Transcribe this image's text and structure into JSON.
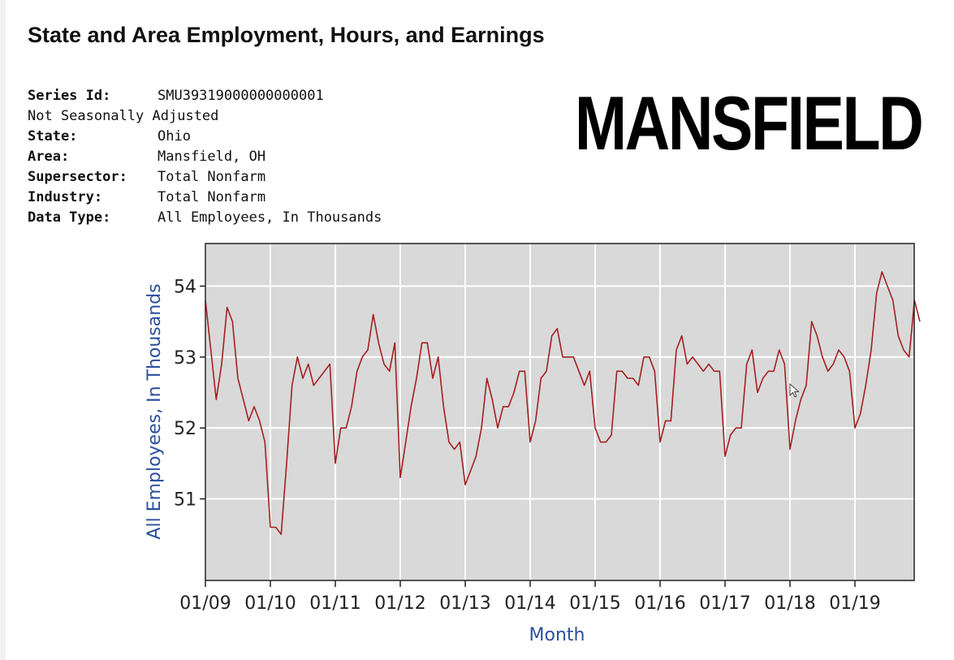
{
  "page": {
    "title": "State and Area Employment, Hours, and Earnings",
    "overlay_label": "MANSFIELD"
  },
  "series_info": [
    {
      "label": "Series Id:",
      "value": "SMU39319000000000001"
    },
    {
      "label": "Not Seasonally Adjusted",
      "value": ""
    },
    {
      "label": "State:",
      "value": "Ohio"
    },
    {
      "label": "Area:",
      "value": "Mansfield, OH"
    },
    {
      "label": "Supersector:",
      "value": "Total Nonfarm"
    },
    {
      "label": "Industry:",
      "value": "Total Nonfarm"
    },
    {
      "label": "Data Type:",
      "value": "All Employees, In Thousands"
    }
  ],
  "colors": {
    "plot_background": "#d9d9d9",
    "grid": "#ffffff",
    "line": "#a52020",
    "axis_label": "#2b4f9e",
    "tick_text": "#222222"
  },
  "chart_data": {
    "type": "line",
    "title": "",
    "xlabel": "Month",
    "ylabel": "All Employees, In Thousands",
    "x_ticks": [
      "01/09",
      "01/10",
      "01/11",
      "01/12",
      "01/13",
      "01/14",
      "01/15",
      "01/16",
      "01/17",
      "01/18",
      "01/19"
    ],
    "y_ticks": [
      51,
      52,
      53,
      54
    ],
    "ylim": [
      49.85,
      54.6
    ],
    "x_start": "2009-01",
    "grid": true,
    "series": [
      {
        "name": "",
        "values": [
          53.8,
          53.1,
          52.4,
          52.9,
          53.7,
          53.5,
          52.7,
          52.4,
          52.1,
          52.3,
          52.1,
          51.8,
          50.6,
          50.6,
          50.5,
          51.5,
          52.6,
          53.0,
          52.7,
          52.9,
          52.6,
          52.7,
          52.8,
          52.9,
          51.5,
          52.0,
          52.0,
          52.3,
          52.8,
          53.0,
          53.1,
          53.6,
          53.2,
          52.9,
          52.8,
          53.2,
          51.3,
          51.8,
          52.3,
          52.7,
          53.2,
          53.2,
          52.7,
          53.0,
          52.3,
          51.8,
          51.7,
          51.8,
          51.2,
          51.4,
          51.6,
          52.0,
          52.7,
          52.4,
          52.0,
          52.3,
          52.3,
          52.5,
          52.8,
          52.8,
          51.8,
          52.1,
          52.7,
          52.8,
          53.3,
          53.4,
          53.0,
          53.0,
          53.0,
          52.8,
          52.6,
          52.8,
          52.0,
          51.8,
          51.8,
          51.9,
          52.8,
          52.8,
          52.7,
          52.7,
          52.6,
          53.0,
          53.0,
          52.8,
          51.8,
          52.1,
          52.1,
          53.1,
          53.3,
          52.9,
          53.0,
          52.9,
          52.8,
          52.9,
          52.8,
          52.8,
          51.6,
          51.9,
          52.0,
          52.0,
          52.9,
          53.1,
          52.5,
          52.7,
          52.8,
          52.8,
          53.1,
          52.9,
          51.7,
          52.1,
          52.4,
          52.6,
          53.5,
          53.3,
          53.0,
          52.8,
          52.9,
          53.1,
          53.0,
          52.8,
          52.0,
          52.2,
          52.6,
          53.1,
          53.9,
          54.2,
          54.0,
          53.8,
          53.3,
          53.1,
          53.0,
          53.8,
          53.5
        ]
      }
    ]
  }
}
